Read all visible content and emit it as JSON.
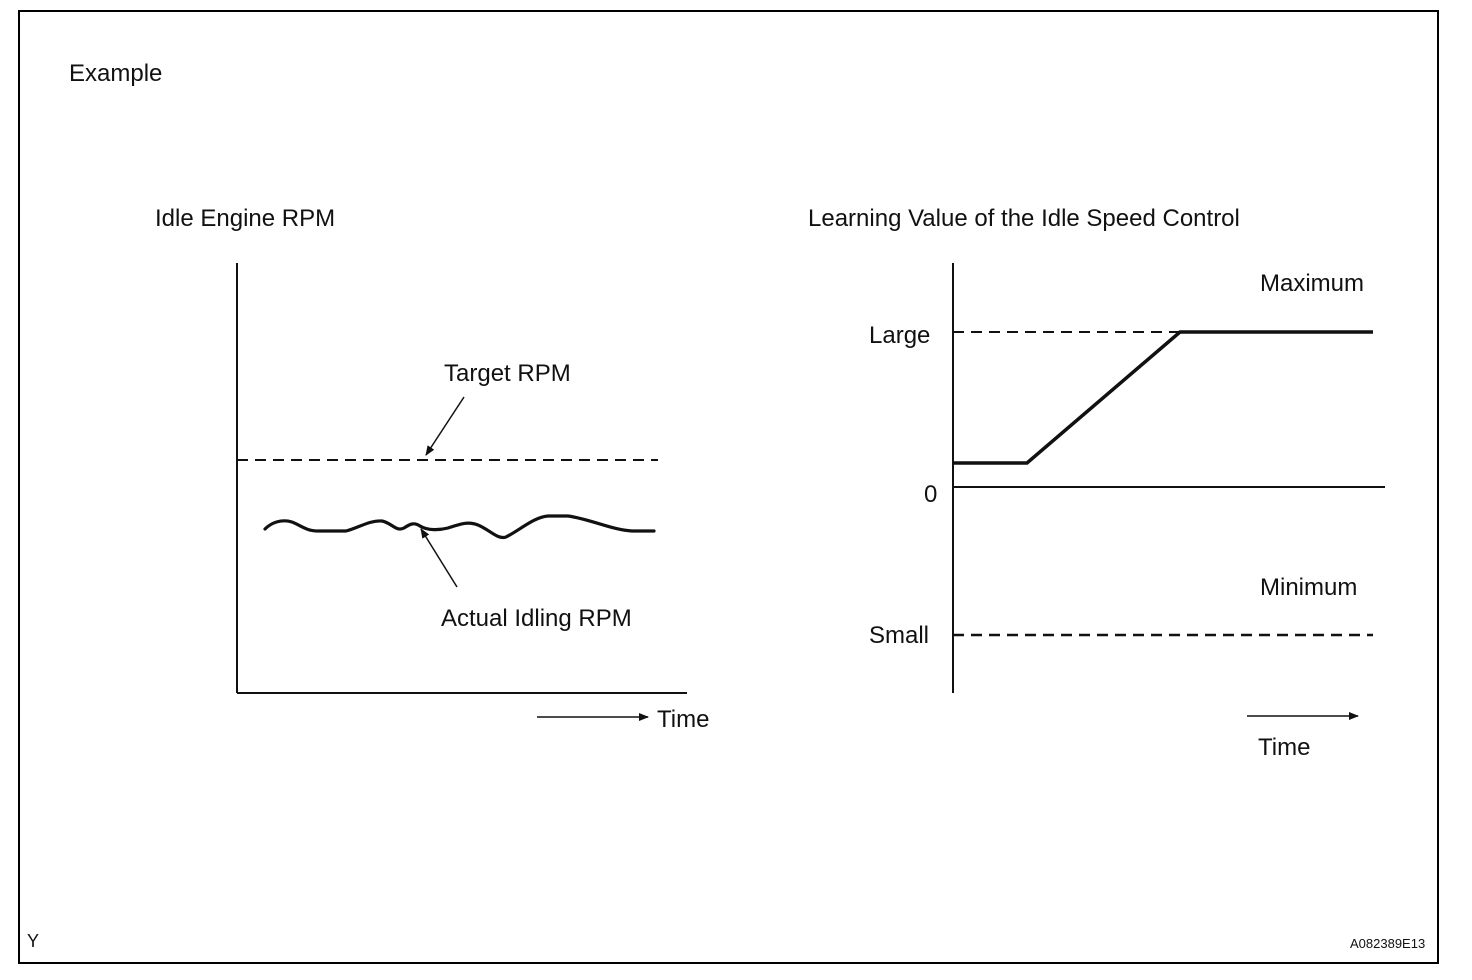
{
  "figure": {
    "heading": "Example",
    "corner_left": "Y",
    "figure_id": "A082389E13"
  },
  "left_chart": {
    "title": "Idle Engine RPM",
    "target_label": "Target RPM",
    "actual_label": "Actual Idling RPM",
    "time_label": "Time"
  },
  "right_chart": {
    "title": "Learning Value of the Idle Speed Control",
    "max_label": "Maximum",
    "min_label": "Minimum",
    "large_label": "Large",
    "zero_label": "0",
    "small_label": "Small",
    "time_label": "Time"
  },
  "colors": {
    "line": "#111111",
    "background": "#ffffff"
  }
}
